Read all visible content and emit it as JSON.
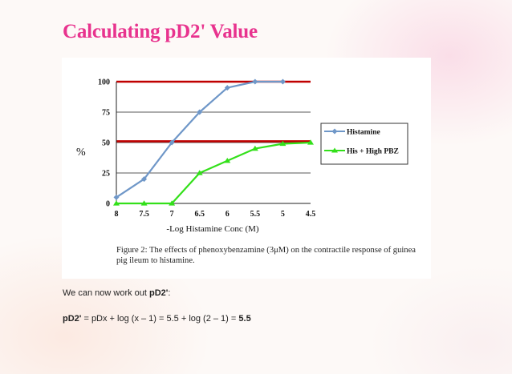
{
  "slide": {
    "title": "Calculating pD2' Value",
    "text1_prefix": "We can now work out ",
    "text1_bold": "pD2'",
    "text1_suffix": ":",
    "formula_bold_start": "pD2'",
    "formula_mid": " = pDx + log (x – 1) = 5.5 + log (2 – 1) = ",
    "formula_bold_end": "5.5"
  },
  "colors": {
    "title": "#e8338e",
    "histamine_series": "#6f97c8",
    "his_pbz_series": "#33e01a",
    "reference_lines": "#c00000"
  },
  "chart_data": {
    "type": "line",
    "caption": "Figure 2: The effects of phenoxybenzamine (3μM) on the contractile response of guinea pig ileum to histamine.",
    "ylabel": "%",
    "xlabel": "-Log Histamine Conc (M)",
    "x": [
      8,
      7.5,
      7,
      6.5,
      6,
      5.5,
      5,
      4.5
    ],
    "x_tick_labels": [
      "8",
      "7.5",
      "7",
      "6.5",
      "6",
      "5.5",
      "5",
      "4.5"
    ],
    "xlim": [
      8,
      4.5
    ],
    "x_reversed": true,
    "ylim": [
      0,
      100
    ],
    "y_ticks": [
      0,
      25,
      50,
      75,
      100
    ],
    "y_tick_labels": [
      "0",
      "25",
      "50",
      "75",
      "100"
    ],
    "grid": true,
    "legend_position": "right",
    "series": [
      {
        "name": "Histamine",
        "values": [
          5,
          20,
          50,
          75,
          95,
          100,
          100,
          null
        ]
      },
      {
        "name": "His + High PBZ",
        "values": [
          0,
          0,
          0,
          25,
          35,
          45,
          49,
          50
        ]
      }
    ],
    "reference_lines": [
      100,
      51
    ]
  }
}
